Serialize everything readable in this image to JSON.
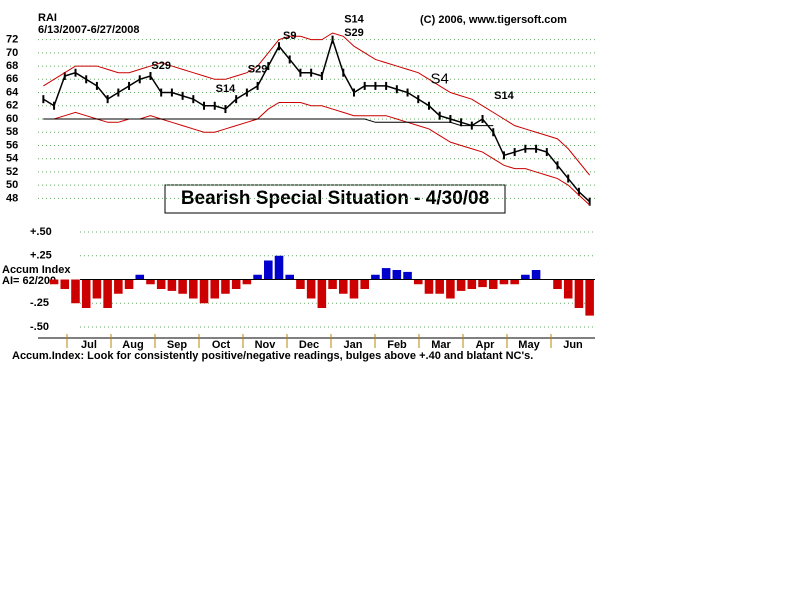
{
  "chart_data": {
    "type": "stock",
    "ticker": "RAI",
    "date_range": "6/13/2007-6/27/2008",
    "copyright": "(C) 2006, www.tigersoft.com",
    "headline": "Bearish Special Situation - 4/30/08",
    "accum_title": "Accum Index",
    "ai_label": "AI= 62/200",
    "footnote": "Accum.Index: Look for consistently positive/negative readings, bulges above +.40 and blatant NC's.",
    "months": [
      "Jul",
      "Aug",
      "Sep",
      "Oct",
      "Nov",
      "Dec",
      "Jan",
      "Feb",
      "Mar",
      "Apr",
      "May",
      "Jun"
    ],
    "ylim": [
      47,
      73
    ],
    "yticks": [
      48,
      50,
      52,
      54,
      56,
      58,
      60,
      62,
      64,
      66,
      68,
      70,
      72
    ],
    "y2lim": [
      -0.5,
      0.5
    ],
    "y2ticks": [
      {
        "value": 0.5,
        "label": "+.50"
      },
      {
        "value": 0.25,
        "label": "+.25"
      },
      {
        "value": -0.25,
        "label": "-.25"
      },
      {
        "value": -0.5,
        "label": "-.50"
      }
    ],
    "grid": true,
    "series": [
      {
        "name": "Close",
        "color": "#000000",
        "values": [
          63,
          62,
          66.5,
          67,
          66,
          65,
          63,
          64,
          65,
          66,
          66.5,
          64,
          64,
          63.5,
          63,
          62,
          62,
          61.5,
          63,
          64,
          65,
          68,
          71,
          69,
          67,
          67,
          66.5,
          72,
          67,
          64,
          65,
          65,
          65,
          64.5,
          64,
          63,
          62,
          60.5,
          60,
          59.5,
          59,
          60,
          58,
          54.5,
          55,
          55.5,
          55.5,
          55,
          53,
          51,
          49,
          47.5
        ]
      },
      {
        "name": "Upper Band",
        "color": "#cc0000",
        "values": [
          65,
          66,
          67,
          68,
          68,
          68,
          67.5,
          67,
          67,
          67.5,
          68,
          68.5,
          68,
          67.5,
          67,
          66.5,
          66,
          66,
          66.5,
          67,
          68,
          70,
          72,
          72.5,
          72.5,
          72,
          72,
          73,
          72.5,
          71,
          70,
          69,
          68.5,
          68,
          67.5,
          67,
          66,
          65,
          64,
          63.5,
          63,
          62,
          61,
          60,
          59,
          58.5,
          58,
          57.5,
          57,
          55.5,
          53.5,
          51.5
        ]
      },
      {
        "name": "Lower Band",
        "color": "#cc0000",
        "values": [
          60,
          60,
          60.5,
          61,
          60.5,
          60,
          59.5,
          59.5,
          60,
          60,
          60.5,
          60,
          59.5,
          59,
          58.5,
          58,
          58,
          58.5,
          59,
          59.5,
          60,
          61.5,
          62.5,
          62.5,
          62.5,
          62,
          62,
          61.5,
          61,
          60.5,
          60.5,
          60.5,
          60.5,
          60,
          59.5,
          59,
          58.5,
          57.5,
          56.5,
          56,
          55.5,
          55,
          54,
          53,
          52.5,
          52.5,
          52,
          51.5,
          51,
          50,
          48.5,
          47
        ]
      },
      {
        "name": "Moving Average",
        "color": "#000000",
        "values": [
          60,
          60,
          60,
          60,
          60,
          60,
          60,
          60,
          60,
          60,
          60,
          60,
          60,
          60,
          60,
          60,
          60,
          60,
          60,
          60,
          60,
          60,
          60,
          60,
          60,
          60,
          60,
          60,
          60,
          60,
          60,
          59.5,
          59.5,
          59.5,
          59.5,
          59.5,
          59.5,
          59.5,
          59.5,
          59,
          59,
          59,
          59,
          null,
          null,
          null,
          null,
          null,
          null,
          null,
          null,
          null
        ]
      },
      {
        "name": "Accum Index",
        "axis": "y2",
        "color": "#cc0000",
        "color_positive": "#0000cc",
        "values": [
          0,
          -0.05,
          -0.1,
          -0.25,
          -0.3,
          -0.2,
          -0.3,
          -0.15,
          -0.1,
          0.05,
          -0.05,
          -0.1,
          -0.12,
          -0.15,
          -0.2,
          -0.25,
          -0.2,
          -0.15,
          -0.1,
          -0.05,
          0.05,
          0.2,
          0.25,
          0.05,
          -0.1,
          -0.2,
          -0.3,
          -0.1,
          -0.15,
          -0.2,
          -0.1,
          0.05,
          0.12,
          0.1,
          0.08,
          -0.05,
          -0.15,
          -0.15,
          -0.2,
          -0.12,
          -0.1,
          -0.08,
          -0.1,
          -0.05,
          -0.05,
          0.05,
          0.1,
          0,
          -0.1,
          -0.2,
          -0.3,
          -0.38
        ]
      }
    ],
    "annotations": [
      {
        "text": "S29",
        "index": 11,
        "price": 68
      },
      {
        "text": "S14",
        "index": 17,
        "price": 64.5
      },
      {
        "text": "S29",
        "index": 20,
        "price": 67.5
      },
      {
        "text": "S9",
        "index": 23,
        "price": 72.5
      },
      {
        "text": "S14",
        "index": 29,
        "price": 75
      },
      {
        "text": "S29",
        "index": 29,
        "price": 73
      },
      {
        "text": "S4",
        "index": 37,
        "price": 66
      },
      {
        "text": "S14",
        "index": 43,
        "price": 63.5
      }
    ]
  }
}
